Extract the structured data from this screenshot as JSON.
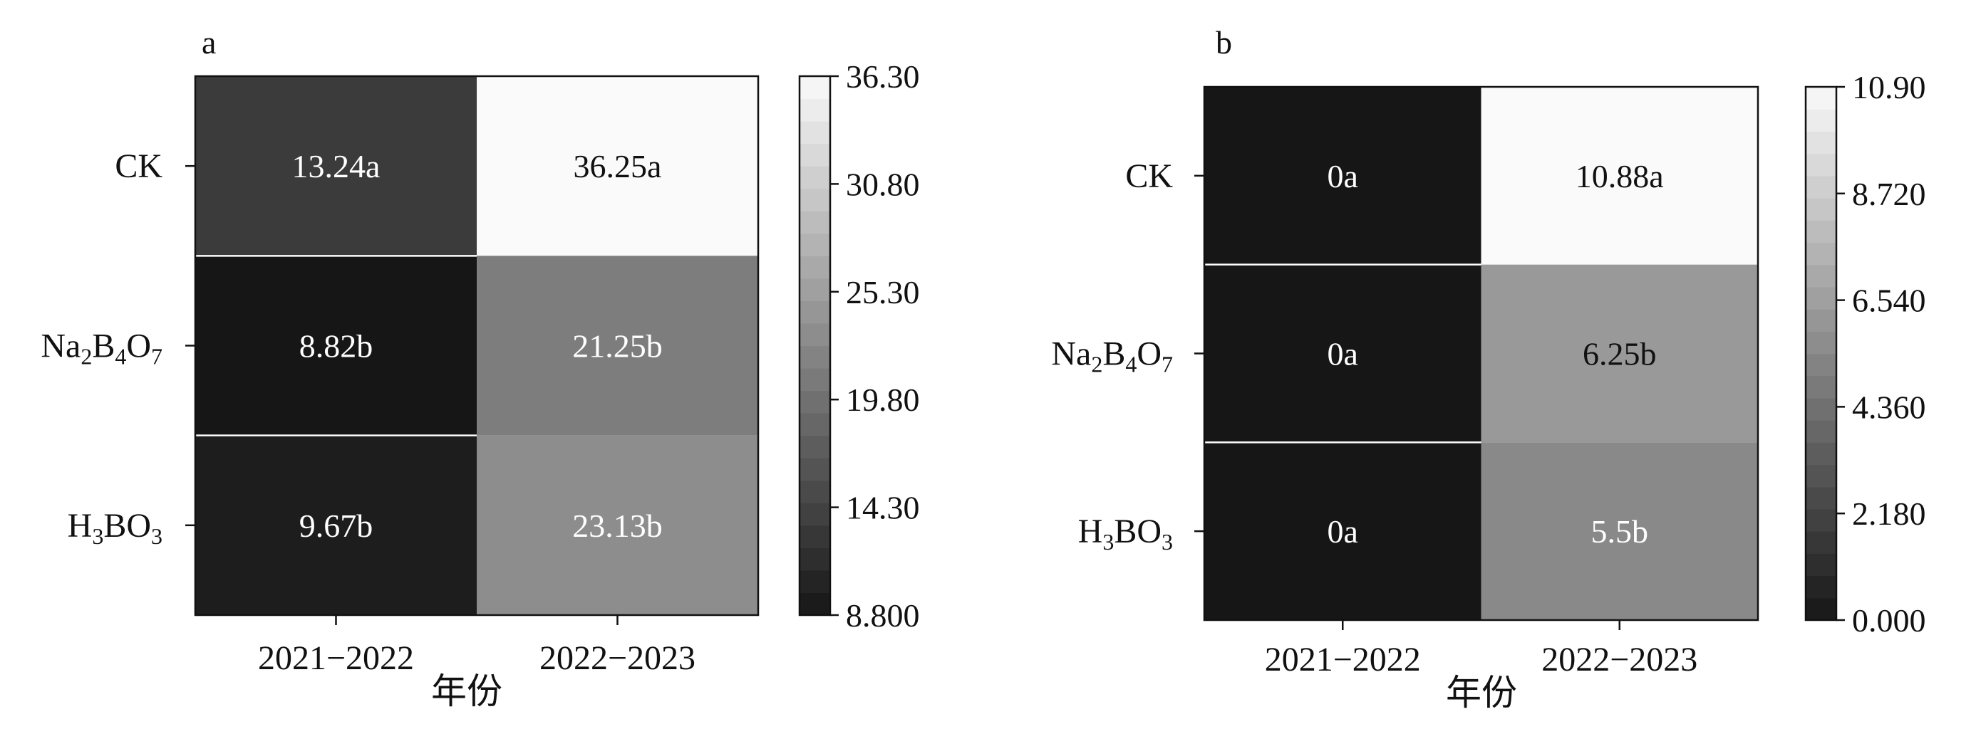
{
  "chart_data": [
    {
      "type": "heatmap",
      "panel_label": "a",
      "xlabel": "年份",
      "ylabel": "",
      "x_categories": [
        "2021−2022",
        "2022−2023"
      ],
      "y_categories": [
        {
          "base": "CK",
          "parts": [
            {
              "t": "CK"
            }
          ]
        },
        {
          "base": "Na2B4O7",
          "parts": [
            {
              "t": "Na"
            },
            {
              "t": "2",
              "sub": true
            },
            {
              "t": "B"
            },
            {
              "t": "4",
              "sub": true
            },
            {
              "t": "O"
            },
            {
              "t": "7",
              "sub": true
            }
          ]
        },
        {
          "base": "H3BO3",
          "parts": [
            {
              "t": "H"
            },
            {
              "t": "3",
              "sub": true
            },
            {
              "t": "BO"
            },
            {
              "t": "3",
              "sub": true
            }
          ]
        }
      ],
      "values": [
        [
          13.24,
          36.25
        ],
        [
          8.82,
          21.25
        ],
        [
          9.67,
          23.13
        ]
      ],
      "cell_labels": [
        [
          "13.24a",
          "36.25a"
        ],
        [
          "8.82b",
          "21.25b"
        ],
        [
          "9.67b",
          "23.13b"
        ]
      ],
      "colorbar": {
        "min": 8.8,
        "max": 36.3,
        "ticks": [
          "8.800",
          "14.30",
          "19.80",
          "25.30",
          "30.80",
          "36.30"
        ],
        "colormap": "gray-to-white"
      }
    },
    {
      "type": "heatmap",
      "panel_label": "b",
      "xlabel": "年份",
      "ylabel": "",
      "x_categories": [
        "2021−2022",
        "2022−2023"
      ],
      "y_categories": [
        {
          "base": "CK",
          "parts": [
            {
              "t": "CK"
            }
          ]
        },
        {
          "base": "Na2B4O7",
          "parts": [
            {
              "t": "Na"
            },
            {
              "t": "2",
              "sub": true
            },
            {
              "t": "B"
            },
            {
              "t": "4",
              "sub": true
            },
            {
              "t": "O"
            },
            {
              "t": "7",
              "sub": true
            }
          ]
        },
        {
          "base": "H3BO3",
          "parts": [
            {
              "t": "H"
            },
            {
              "t": "3",
              "sub": true
            },
            {
              "t": "BO"
            },
            {
              "t": "3",
              "sub": true
            }
          ]
        }
      ],
      "values": [
        [
          0,
          10.88
        ],
        [
          0,
          6.25
        ],
        [
          0,
          5.5
        ]
      ],
      "cell_labels": [
        [
          "0a",
          "10.88a"
        ],
        [
          "0a",
          "6.25b"
        ],
        [
          "0a",
          "5.5b"
        ]
      ],
      "colorbar": {
        "min": 0,
        "max": 10.9,
        "ticks": [
          "0.000",
          "2.180",
          "4.360",
          "6.540",
          "8.720",
          "10.90"
        ],
        "colormap": "gray-to-white"
      }
    }
  ]
}
